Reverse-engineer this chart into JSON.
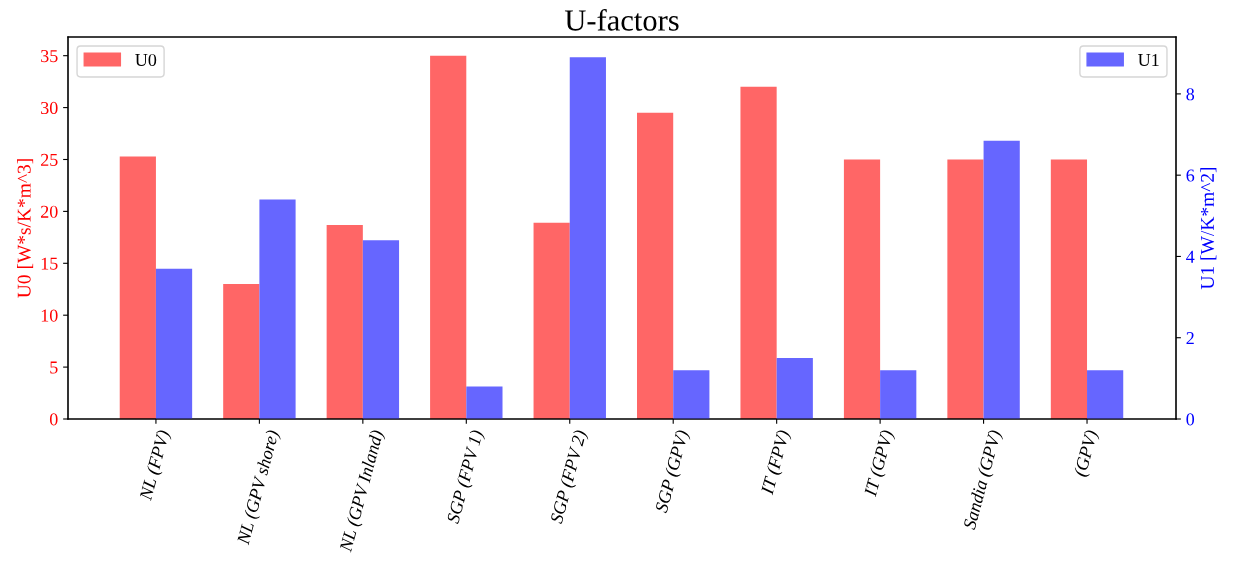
{
  "chart_data": {
    "type": "bar",
    "title": "U-factors",
    "ylabel": "U0 [W*s/K*m^3]",
    "y2label": "U1 [W/K*m^2]",
    "categories": [
      "NL (FPV)",
      "NL (GPV shore)",
      "NL (GPV Inland)",
      "SGP (FPV 1)",
      "SGP (FPV 2)",
      "SGP (GPV)",
      "IT (FPV)",
      "IT (GPV)",
      "Sandia (GPV)",
      "(GPV)"
    ],
    "series": [
      {
        "name": "U0",
        "color": "#ff6666",
        "axis": "y",
        "values": [
          25.3,
          13.0,
          18.7,
          35.0,
          18.9,
          29.5,
          32.0,
          25.0,
          25.0,
          25.0
        ]
      },
      {
        "name": "U1",
        "color": "#6666ff",
        "axis": "y2",
        "values": [
          3.7,
          5.4,
          4.4,
          0.8,
          8.9,
          1.2,
          1.5,
          1.2,
          6.85,
          1.2
        ]
      }
    ],
    "ylim": [
      0,
      36.8
    ],
    "yticks": [
      0,
      5,
      10,
      15,
      20,
      25,
      30,
      35
    ],
    "y2lim": [
      0,
      9.4
    ],
    "y2ticks": [
      0,
      2,
      4,
      6,
      8
    ],
    "grid": false,
    "legend": "top"
  }
}
